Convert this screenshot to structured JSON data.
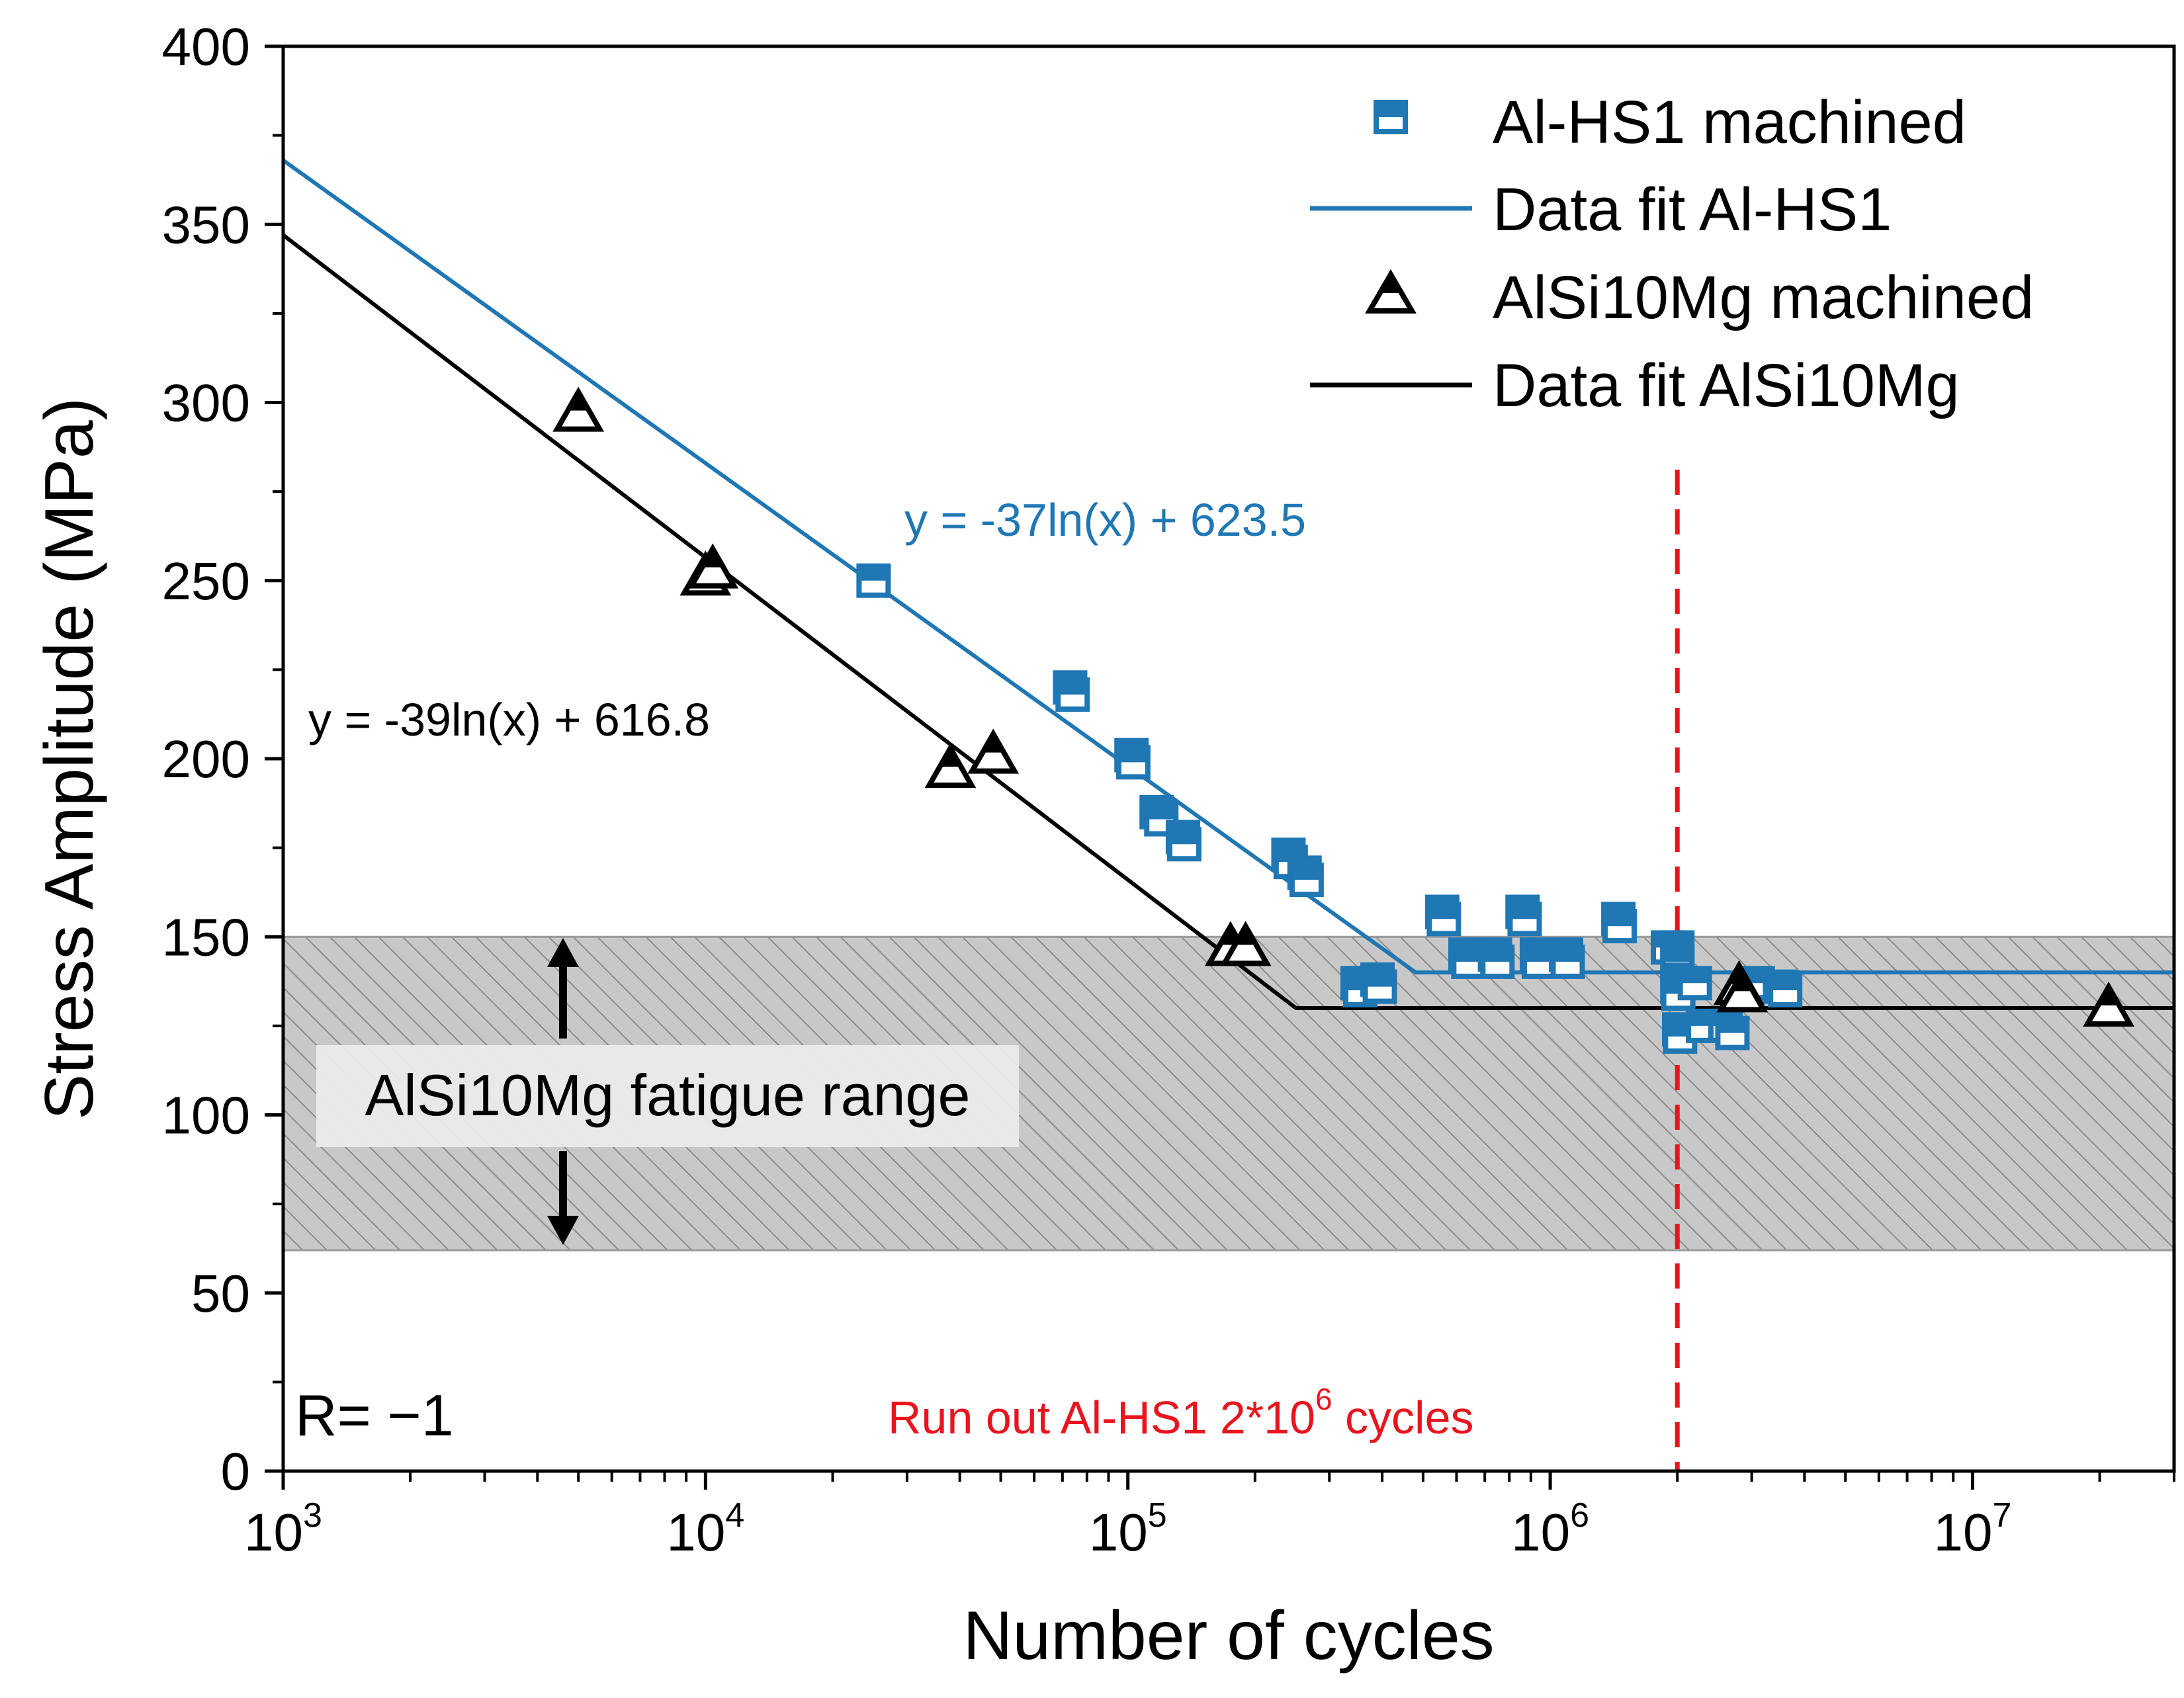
{
  "chart_data": {
    "type": "scatter",
    "x_scale": "log",
    "xlabel": "Number of cycles",
    "ylabel": "Stress Amplitude (MPa)",
    "xlim": [
      1000,
      30000000
    ],
    "ylim": [
      0,
      400
    ],
    "x_ticks": [
      {
        "mantissa": "10",
        "exponent": "3",
        "value": 1000
      },
      {
        "mantissa": "10",
        "exponent": "4",
        "value": 10000
      },
      {
        "mantissa": "10",
        "exponent": "5",
        "value": 100000
      },
      {
        "mantissa": "10",
        "exponent": "6",
        "value": 1000000
      },
      {
        "mantissa": "10",
        "exponent": "7",
        "value": 10000000
      }
    ],
    "y_ticks": [
      "0",
      "50",
      "100",
      "150",
      "200",
      "250",
      "300",
      "350",
      "400"
    ],
    "series": [
      {
        "name": "Al-HS1 machined",
        "kind": "scatter",
        "marker": "square-half",
        "color": "#1f77b4",
        "points": [
          [
            25000,
            250
          ],
          [
            73000,
            220
          ],
          [
            74000,
            218
          ],
          [
            102000,
            201
          ],
          [
            103000,
            199
          ],
          [
            117000,
            185
          ],
          [
            120000,
            183
          ],
          [
            135000,
            178
          ],
          [
            136000,
            176
          ],
          [
            240000,
            173
          ],
          [
            243000,
            171
          ],
          [
            262000,
            168
          ],
          [
            265000,
            166
          ],
          [
            350000,
            137
          ],
          [
            355000,
            135
          ],
          [
            390000,
            138
          ],
          [
            395000,
            136
          ],
          [
            555000,
            157
          ],
          [
            560000,
            155
          ],
          [
            630000,
            145
          ],
          [
            640000,
            143
          ],
          [
            740000,
            145
          ],
          [
            750000,
            143
          ],
          [
            860000,
            157
          ],
          [
            870000,
            155
          ],
          [
            930000,
            145
          ],
          [
            940000,
            143
          ],
          [
            1090000,
            145
          ],
          [
            1100000,
            143
          ],
          [
            1450000,
            155
          ],
          [
            1460000,
            153
          ],
          [
            1900000,
            147
          ],
          [
            2000000,
            147
          ],
          [
            2000000,
            143
          ],
          [
            2000000,
            138
          ],
          [
            2000000,
            136
          ],
          [
            2010000,
            134
          ],
          [
            2020000,
            124
          ],
          [
            2030000,
            122
          ],
          [
            2200000,
            137
          ],
          [
            2300000,
            125
          ],
          [
            2600000,
            125
          ],
          [
            2700000,
            123
          ],
          [
            3100000,
            137
          ],
          [
            3500000,
            136
          ],
          [
            3600000,
            135
          ]
        ]
      },
      {
        "name": "Data fit Al-HS1",
        "kind": "line",
        "color": "#1f77b4",
        "points": [
          [
            1000,
            368
          ],
          [
            480000,
            140
          ],
          [
            30000000,
            140
          ]
        ]
      },
      {
        "name": "AlSi10Mg machined",
        "kind": "scatter",
        "marker": "triangle-half",
        "color": "#000000",
        "points": [
          [
            5000,
            297
          ],
          [
            10000,
            251
          ],
          [
            10400,
            253
          ],
          [
            38000,
            197
          ],
          [
            48000,
            201
          ],
          [
            175000,
            147
          ],
          [
            190000,
            147
          ],
          [
            2800000,
            136
          ],
          [
            2850000,
            134
          ],
          [
            21000000,
            130
          ]
        ]
      },
      {
        "name": "Data fit AlSi10Mg",
        "kind": "line",
        "color": "#000000",
        "points": [
          [
            1000,
            347
          ],
          [
            250000,
            130
          ],
          [
            30000000,
            130
          ]
        ]
      }
    ],
    "shaded_band": {
      "y_from": 62,
      "y_to": 150,
      "label": "AlSi10Mg fatigue range"
    },
    "vertical_line": {
      "x": 2000000,
      "color": "#e8141e",
      "style": "dashed"
    },
    "annotations": {
      "eq_blue": "y = -37ln(x) + 623.5",
      "eq_black": "y = -39ln(x) + 616.8",
      "runout_prefix": "Run out Al-HS1 2*10",
      "runout_exp": "6",
      "runout_suffix": " cycles",
      "r_value": "R= −1"
    },
    "legend": [
      {
        "label": "Al-HS1 machined",
        "symbol": "square-half",
        "color": "#1f77b4"
      },
      {
        "label": "Data fit Al-HS1",
        "symbol": "line",
        "color": "#1f77b4"
      },
      {
        "label": "AlSi10Mg machined",
        "symbol": "triangle-half",
        "color": "#000000"
      },
      {
        "label": "Data fit AlSi10Mg",
        "symbol": "line",
        "color": "#000000"
      }
    ],
    "legend_position": "top-right"
  }
}
